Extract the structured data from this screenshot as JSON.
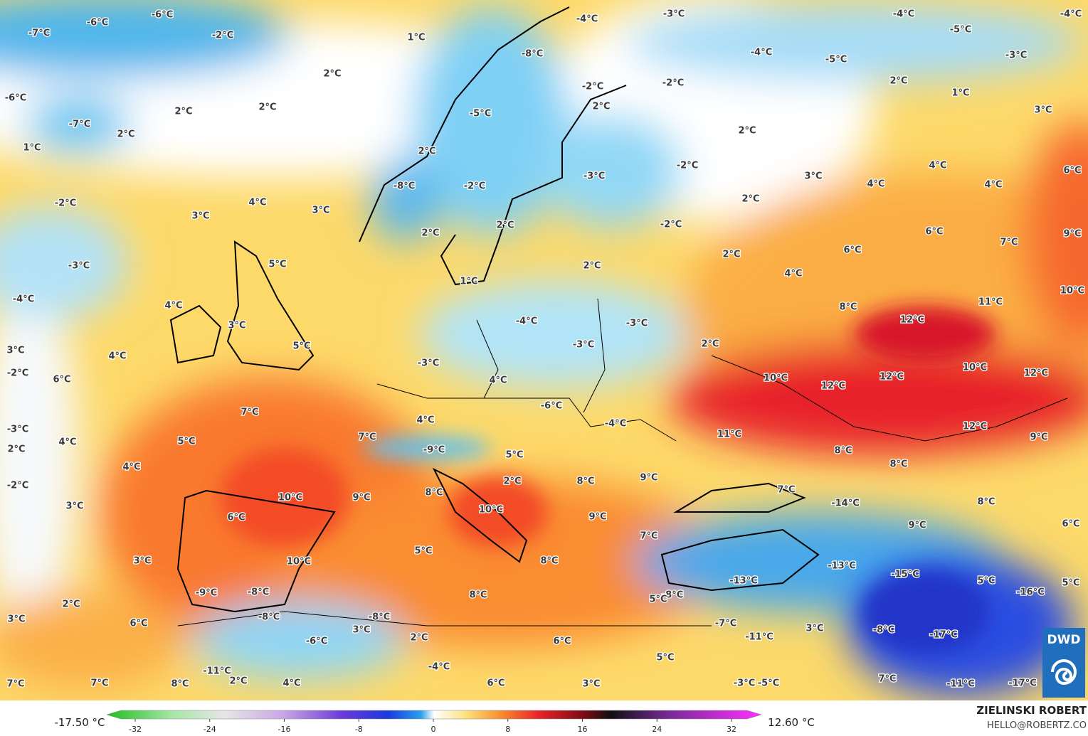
{
  "map": {
    "labels": [
      "-6°C",
      "-6°C",
      "-7°C",
      "-2°C",
      "1°C",
      "-4°C",
      "-3°C",
      "-4°C",
      "-4°C",
      "-5°C",
      "-3°C",
      "-4°C",
      "-5°C",
      "-8°C",
      "2°C",
      "-2°C",
      "-2°C",
      "2°C",
      "1°C",
      "-6°C",
      "-7°C",
      "2°C",
      "2°C",
      "2°C",
      "-5°C",
      "3°C",
      "2°C",
      "1°C",
      "2°C",
      "2°C",
      "-3°C",
      "-2°C",
      "3°C",
      "4°C",
      "4°C",
      "4°C",
      "6°C",
      "-8°C",
      "-2°C",
      "2°C",
      "-2°C",
      "4°C",
      "3°C",
      "3°C",
      "2°C",
      "2°C",
      "-2°C",
      "6°C",
      "9°C",
      "7°C",
      "6°C",
      "2°C",
      "5°C",
      "-3°C",
      "2°C",
      "4°C",
      "1°C",
      "10°C",
      "-4°C",
      "4°C",
      "11°C",
      "8°C",
      "12°C",
      "-4°C",
      "-3°C",
      "3°C",
      "-3°C",
      "5°C",
      "2°C",
      "3°C",
      "4°C",
      "-3°C",
      "-2°C",
      "10°C",
      "12°C",
      "12°C",
      "10°C",
      "12°C",
      "6°C",
      "4°C",
      "-6°C",
      "7°C",
      "4°C",
      "-4°C",
      "11°C",
      "12°C",
      "-3°C",
      "7°C",
      "5°C",
      "4°C",
      "9°C",
      "2°C",
      "-9°C",
      "5°C",
      "8°C",
      "4°C",
      "8°C",
      "9°C",
      "8°C",
      "2°C",
      "-2°C",
      "7°C",
      "9°C",
      "10°C",
      "8°C",
      "-14°C",
      "8°C",
      "3°C",
      "10°C",
      "9°C",
      "6°C",
      "9°C",
      "6°C",
      "7°C",
      "5°C",
      "-13°C",
      "8°C",
      "3°C",
      "10°C",
      "-15°C",
      "-13°C",
      "5°C",
      "5°C",
      "-9°C",
      "-8°C",
      "8°C",
      "-16°C",
      "-8°C",
      "5°C",
      "2°C",
      "3°C",
      "-8°C",
      "-8°C",
      "6°C",
      "-7°C",
      "3°C",
      "-8°C",
      "3°C",
      "-17°C",
      "-11°C",
      "-6°C",
      "2°C",
      "6°C",
      "5°C",
      "-4°C",
      "-11°C",
      "2°C",
      "7°C",
      "7°C",
      "8°C",
      "4°C",
      "6°C",
      "3°C",
      "7°C",
      "-3°C",
      "-5°C",
      "-11°C",
      "-17°C"
    ]
  },
  "legend": {
    "min": "-17.50 °C",
    "max": "12.60 °C",
    "ticks": [
      -32,
      -24,
      -16,
      -8,
      0,
      8,
      16,
      24,
      32
    ]
  },
  "credit": {
    "author": "ZIELINSKI ROBERT",
    "email": "HELLO@ROBERTZ.CO"
  },
  "logo": "DWD"
}
